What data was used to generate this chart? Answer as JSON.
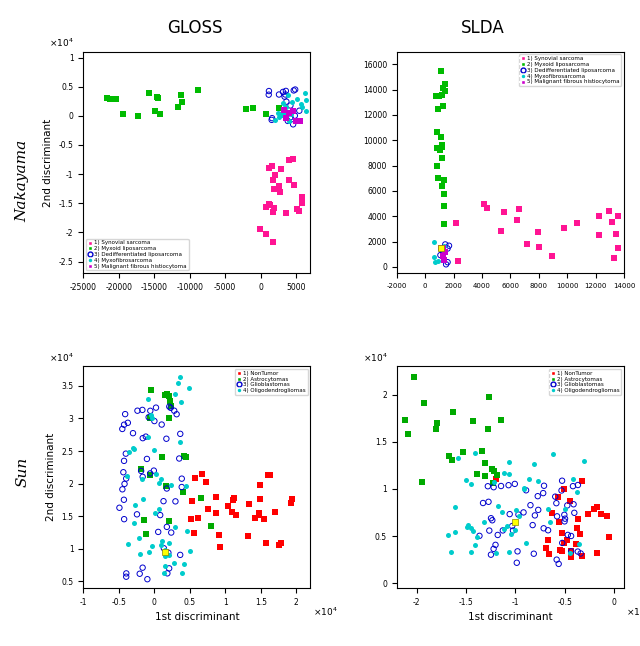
{
  "title_gloss": "GLOSS",
  "title_slda": "SLDA",
  "row_labels": [
    "Nakayama",
    "Sun"
  ],
  "xlabel": "1st discriminant",
  "ylabel": "2nd discriminant",
  "nakayama_legend": [
    "1) Synovial sarcoma",
    "2) Myxoid liposarcoma",
    "3) Dedifferentiated liposarcoma",
    "4) Myxofibrosarcoma",
    "5) Malignant fibrous histiocytoma"
  ],
  "sun_legend": [
    "1) NonTumor",
    "2) Astrocytomas",
    "3) Glioblastomas",
    "4) Oligodendrogliomas"
  ],
  "c1_nak": "#FF1493",
  "c2_nak": "#00BB00",
  "c3_nak": "#0000CD",
  "c4_nak": "#00CCCC",
  "c5_nak": "#CC00CC",
  "c1_sun": "#FF0000",
  "c2_sun": "#00AA00",
  "c3_sun": "#0000CD",
  "c4_sun": "#00CCCC",
  "nak_gloss_xlim": [
    -25000,
    7000
  ],
  "nak_gloss_ylim": [
    -27000,
    11000
  ],
  "nak_slda_xlim": [
    -2000,
    14000
  ],
  "nak_slda_ylim": [
    -500,
    17000
  ],
  "sun_gloss_xlim": [
    -10000,
    22000
  ],
  "sun_gloss_ylim": [
    4000,
    38000
  ],
  "sun_slda_xlim": [
    -22000,
    1000
  ],
  "sun_slda_ylim": [
    -500,
    23000
  ]
}
